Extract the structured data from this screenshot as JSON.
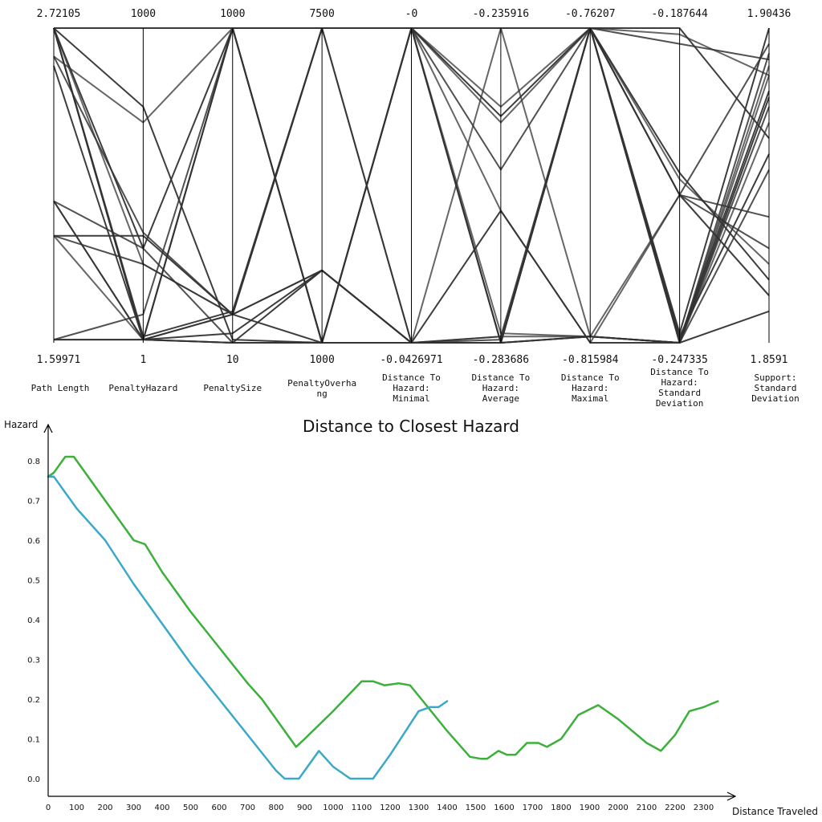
{
  "chart_data": [
    {
      "type": "parallel-coordinates",
      "line_color": "#333333",
      "axes": [
        {
          "name": "Path Length",
          "max_label": "2.72105",
          "min_label": "1.59971",
          "max": 2.72105,
          "min": 1.59971
        },
        {
          "name": "PenaltyHazard",
          "max_label": "1000",
          "min_label": "1",
          "max": 1000,
          "min": 1
        },
        {
          "name": "PenaltySize",
          "max_label": "1000",
          "min_label": "10",
          "max": 1000,
          "min": 10
        },
        {
          "name": "PenaltyOverhang",
          "max_label": "7500",
          "min_label": "1000",
          "max": 7500,
          "min": 1000
        },
        {
          "name": "Distance To Hazard: Minimal",
          "max_label": "-0",
          "min_label": "-0.0426971",
          "max": 0,
          "min": -0.0426971
        },
        {
          "name": "Distance To Hazard: Average",
          "max_label": "-0.235916",
          "min_label": "-0.283686",
          "max": -0.235916,
          "min": -0.283686
        },
        {
          "name": "Distance To Hazard: Maximal",
          "max_label": "-0.76207",
          "min_label": "-0.815984",
          "max": -0.76207,
          "min": -0.815984
        },
        {
          "name": "Distance To Hazard: Standard Deviation",
          "max_label": "-0.187644",
          "min_label": "-0.247335",
          "max": -0.187644,
          "min": -0.247335
        },
        {
          "name": "Support: Standard Deviation",
          "max_label": "1.90436",
          "min_label": "1.8591",
          "max": 1.90436,
          "min": 1.8591
        }
      ],
      "rows": [
        [
          1.0,
          1.0,
          1.0,
          1.0,
          1.0,
          0.75,
          1.0,
          0.98,
          0.85
        ],
        [
          1.0,
          1.0,
          1.0,
          1.0,
          1.0,
          0.55,
          1.0,
          0.95,
          0.9
        ],
        [
          1.0,
          0.75,
          0.01,
          0.0,
          0.0,
          0.0,
          1.0,
          0.03,
          1.0
        ],
        [
          1.0,
          0.01,
          0.0,
          0.0,
          1.0,
          0.7,
          1.0,
          0.52,
          0.25
        ],
        [
          1.0,
          0.01,
          1.0,
          0.0,
          1.0,
          0.0,
          0.02,
          0.0,
          0.92
        ],
        [
          1.0,
          0.02,
          0.1,
          1.0,
          1.0,
          0.72,
          1.0,
          0.54,
          0.2
        ],
        [
          1.0,
          0.25,
          0.09,
          0.23,
          0.0,
          1.0,
          0.02,
          0.0,
          0.85
        ],
        [
          1.0,
          0.01,
          1.0,
          0.0,
          1.0,
          1.0,
          1.0,
          0.47,
          0.95
        ],
        [
          1.0,
          0.3,
          1.0,
          0.0,
          1.0,
          0.0,
          1.0,
          1.0,
          0.65
        ],
        [
          0.91,
          0.7,
          1.0,
          0.0,
          1.0,
          0.03,
          0.02,
          0.0,
          0.88
        ],
        [
          0.91,
          0.35,
          0.09,
          1.0,
          0.0,
          0.0,
          1.0,
          0.47,
          0.4
        ],
        [
          0.88,
          0.01,
          0.0,
          0.23,
          0.0,
          0.0,
          0.02,
          0.0,
          0.78
        ],
        [
          0.45,
          0.01,
          0.09,
          1.0,
          1.0,
          0.42,
          0.0,
          0.47,
          0.15
        ],
        [
          0.45,
          0.3,
          0.0,
          0.0,
          0.0,
          0.01,
          1.0,
          0.0,
          0.75
        ],
        [
          0.45,
          0.01,
          0.03,
          0.23,
          0.0,
          0.0,
          1.0,
          0.01,
          0.8
        ],
        [
          0.34,
          0.01,
          1.0,
          0.0,
          0.0,
          0.02,
          0.02,
          0.0,
          0.7
        ],
        [
          0.34,
          0.25,
          0.09,
          1.0,
          1.0,
          1.0,
          1.0,
          0.47,
          0.3
        ],
        [
          0.34,
          0.34,
          0.09,
          0.23,
          0.0,
          0.0,
          1.0,
          0.02,
          0.6
        ],
        [
          0.01,
          0.01,
          0.0,
          0.0,
          1.0,
          0.0,
          0.02,
          0.47,
          0.15
        ],
        [
          0.01,
          0.09,
          1.0,
          1.0,
          0.0,
          0.02,
          1.0,
          0.0,
          0.55
        ],
        [
          0.01,
          0.01,
          0.09,
          0.0,
          0.0,
          0.42,
          0.0,
          0.0,
          0.1
        ]
      ]
    },
    {
      "type": "line",
      "title": "Distance to Closest Hazard",
      "xlabel": "Distance Traveled",
      "ylabel": "Hazard",
      "xlim": [
        0,
        2400
      ],
      "ylim": [
        -0.04,
        0.88
      ],
      "xticks": [
        0,
        100,
        200,
        300,
        400,
        500,
        600,
        700,
        800,
        900,
        1000,
        1100,
        1200,
        1300,
        1400,
        1500,
        1600,
        1700,
        1800,
        1900,
        2000,
        2100,
        2200,
        2300
      ],
      "yticks": [
        "0.0",
        "0.1",
        "0.2",
        "0.3",
        "0.4",
        "0.5",
        "0.6",
        "0.7",
        "0.8"
      ],
      "series": [
        {
          "color": "#3bb03b",
          "x": [
            0,
            20,
            60,
            90,
            200,
            300,
            340,
            400,
            500,
            600,
            700,
            750,
            870,
            900,
            1000,
            1100,
            1140,
            1180,
            1230,
            1270,
            1310,
            1400,
            1480,
            1520,
            1540,
            1580,
            1610,
            1640,
            1680,
            1720,
            1750,
            1800,
            1860,
            1930,
            2000,
            2100,
            2150,
            2200,
            2250,
            2300,
            2350
          ],
          "y": [
            0.76,
            0.77,
            0.81,
            0.81,
            0.7,
            0.6,
            0.59,
            0.52,
            0.42,
            0.33,
            0.24,
            0.2,
            0.08,
            0.1,
            0.17,
            0.245,
            0.245,
            0.235,
            0.24,
            0.235,
            0.2,
            0.12,
            0.055,
            0.05,
            0.05,
            0.07,
            0.06,
            0.06,
            0.09,
            0.09,
            0.08,
            0.1,
            0.16,
            0.185,
            0.15,
            0.09,
            0.07,
            0.11,
            0.17,
            0.18,
            0.195
          ]
        },
        {
          "color": "#3aa9c8",
          "x": [
            0,
            20,
            100,
            200,
            300,
            400,
            500,
            600,
            700,
            800,
            830,
            880,
            950,
            1000,
            1060,
            1140,
            1200,
            1300,
            1340,
            1370,
            1400
          ],
          "y": [
            0.76,
            0.76,
            0.68,
            0.6,
            0.49,
            0.39,
            0.29,
            0.2,
            0.11,
            0.02,
            0.0,
            0.0,
            0.07,
            0.03,
            0.0,
            0.0,
            0.06,
            0.17,
            0.18,
            0.18,
            0.195
          ]
        }
      ]
    }
  ]
}
